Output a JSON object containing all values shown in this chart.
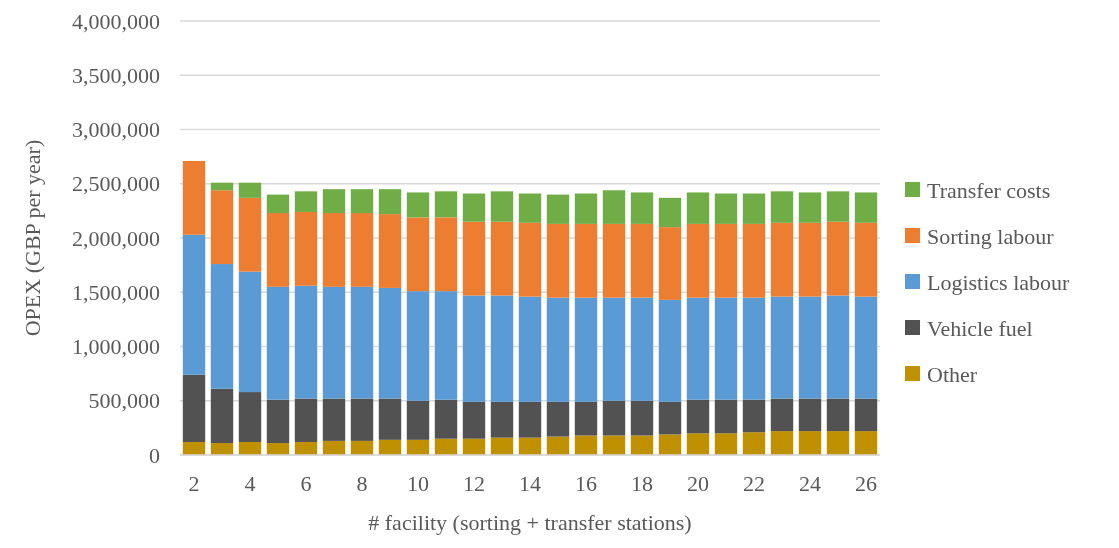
{
  "chart_data": {
    "type": "bar",
    "stacked": true,
    "xlabel": "# facility (sorting + transfer stations)",
    "ylabel": "OPEX (GBP per year)",
    "x": [
      2,
      3,
      4,
      5,
      6,
      7,
      8,
      9,
      10,
      11,
      12,
      13,
      14,
      15,
      16,
      17,
      18,
      19,
      20,
      21,
      22,
      23,
      24,
      25,
      26
    ],
    "xlim": [
      1.5,
      26.5
    ],
    "xticks": [
      2,
      4,
      6,
      8,
      10,
      12,
      14,
      16,
      18,
      20,
      22,
      24,
      26
    ],
    "ylim": [
      0,
      4000000
    ],
    "yticks": [
      {
        "value": 0,
        "label": "0"
      },
      {
        "value": 500000,
        "label": "500,000"
      },
      {
        "value": 1000000,
        "label": "1,000,000"
      },
      {
        "value": 1500000,
        "label": "1,500,000"
      },
      {
        "value": 2000000,
        "label": "2,000,000"
      },
      {
        "value": 2500000,
        "label": "2,500,000"
      },
      {
        "value": 3000000,
        "label": "3,000,000"
      },
      {
        "value": 3500000,
        "label": "3,500,000"
      },
      {
        "value": 4000000,
        "label": "4,000,000"
      }
    ],
    "grid": "y",
    "legend": "right",
    "series": [
      {
        "name": "Other",
        "color": "#bf9000",
        "values": [
          120000,
          110000,
          120000,
          110000,
          120000,
          130000,
          130000,
          140000,
          140000,
          150000,
          150000,
          160000,
          160000,
          170000,
          180000,
          180000,
          180000,
          190000,
          200000,
          200000,
          210000,
          220000,
          220000,
          220000,
          220000
        ]
      },
      {
        "name": "Vehicle fuel",
        "color": "#525252",
        "values": [
          620000,
          500000,
          460000,
          400000,
          400000,
          390000,
          390000,
          380000,
          360000,
          360000,
          340000,
          330000,
          330000,
          320000,
          310000,
          320000,
          320000,
          300000,
          310000,
          310000,
          300000,
          300000,
          300000,
          300000,
          300000
        ]
      },
      {
        "name": "Logistics labour",
        "color": "#5b9bd5",
        "values": [
          1290000,
          1150000,
          1110000,
          1040000,
          1040000,
          1030000,
          1030000,
          1020000,
          1010000,
          1000000,
          980000,
          980000,
          970000,
          960000,
          960000,
          950000,
          950000,
          940000,
          940000,
          940000,
          940000,
          940000,
          940000,
          950000,
          940000
        ]
      },
      {
        "name": "Sorting labour",
        "color": "#ed7d31",
        "values": [
          680000,
          680000,
          680000,
          680000,
          680000,
          680000,
          680000,
          680000,
          680000,
          680000,
          680000,
          680000,
          680000,
          680000,
          680000,
          680000,
          680000,
          670000,
          680000,
          680000,
          680000,
          680000,
          680000,
          680000,
          680000
        ]
      },
      {
        "name": "Transfer costs",
        "color": "#70ad47",
        "values": [
          0,
          70000,
          140000,
          170000,
          190000,
          220000,
          220000,
          230000,
          230000,
          240000,
          260000,
          280000,
          270000,
          270000,
          280000,
          310000,
          290000,
          270000,
          290000,
          280000,
          280000,
          290000,
          280000,
          280000,
          280000
        ]
      }
    ]
  }
}
